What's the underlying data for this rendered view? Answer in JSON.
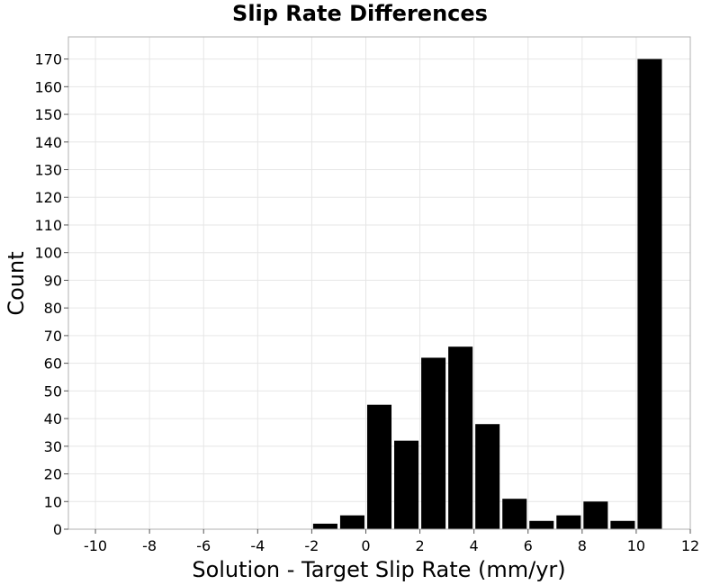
{
  "chart_data": {
    "type": "bar",
    "title": "Slip Rate Differences",
    "xlabel": "Solution - Target Slip Rate (mm/yr)",
    "ylabel": "Count",
    "xlim": [
      -11,
      12
    ],
    "ylim": [
      0,
      178
    ],
    "xticks": [
      -10,
      -8,
      -6,
      -4,
      -2,
      0,
      2,
      4,
      6,
      8,
      10,
      12
    ],
    "yticks": [
      0,
      10,
      20,
      30,
      40,
      50,
      60,
      70,
      80,
      90,
      100,
      110,
      120,
      130,
      140,
      150,
      160,
      170
    ],
    "grid": true,
    "bar_color": "#000000",
    "bin_width": 1,
    "bins": [
      {
        "x": -1.5,
        "value": 2
      },
      {
        "x": -0.5,
        "value": 5
      },
      {
        "x": 0.5,
        "value": 45
      },
      {
        "x": 1.5,
        "value": 32
      },
      {
        "x": 2.5,
        "value": 62
      },
      {
        "x": 3.5,
        "value": 66
      },
      {
        "x": 4.5,
        "value": 38
      },
      {
        "x": 5.5,
        "value": 11
      },
      {
        "x": 6.5,
        "value": 3
      },
      {
        "x": 7.5,
        "value": 5
      },
      {
        "x": 8.5,
        "value": 10
      },
      {
        "x": 9.5,
        "value": 3
      },
      {
        "x": 10.5,
        "value": 170
      }
    ]
  }
}
